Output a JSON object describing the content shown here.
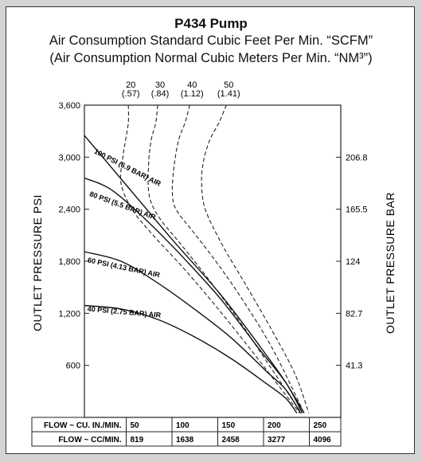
{
  "chart_data": {
    "type": "line",
    "title": "P434 Pump",
    "subtitle_1": "Air Consumption Standard Cubic Feet Per Min. “SCFM”",
    "subtitle_2": "(Air Consumption Normal Cubic Meters Per Min. “NM³”)",
    "ylabel_left": "OUTLET PRESSURE PSI",
    "ylabel_right": "OUTLET PRESSURE BAR",
    "ylim": [
      0,
      3600
    ],
    "xlim": [
      0,
      280
    ],
    "y_ticks_left": [
      "3,600",
      "3,000",
      "2,400",
      "1,800",
      "1,200",
      "600"
    ],
    "y_ticks_left_values": [
      3600,
      3000,
      2400,
      1800,
      1200,
      600
    ],
    "y_ticks_right": [
      "206.8",
      "165.5",
      "124",
      "82.7",
      "41.3"
    ],
    "y_ticks_right_values": [
      3000,
      2400,
      1800,
      1200,
      600
    ],
    "x_table": {
      "row1_label": "FLOW ~ CU. IN./MIN.",
      "row1_values": [
        "50",
        "100",
        "150",
        "200",
        "250"
      ],
      "row2_label": "FLOW ~ CC/MIN.",
      "row2_values": [
        "819",
        "1638",
        "2458",
        "3277",
        "4096"
      ]
    },
    "series": [
      {
        "name": "100 PSI (6.9 BAR) AIR",
        "points": [
          [
            0,
            3250
          ],
          [
            20,
            3000
          ],
          [
            60,
            2500
          ],
          [
            100,
            2000
          ],
          [
            150,
            1400
          ],
          [
            200,
            700
          ],
          [
            220,
            400
          ],
          [
            240,
            50
          ]
        ]
      },
      {
        "name": "80 PSI (5.5 BAR) AIR",
        "points": [
          [
            0,
            2760
          ],
          [
            30,
            2620
          ],
          [
            70,
            2250
          ],
          [
            110,
            1820
          ],
          [
            150,
            1350
          ],
          [
            190,
            800
          ],
          [
            220,
            400
          ],
          [
            238,
            50
          ]
        ]
      },
      {
        "name": "60 PSI (4.13 BAR) AIR",
        "points": [
          [
            0,
            1910
          ],
          [
            40,
            1800
          ],
          [
            80,
            1550
          ],
          [
            120,
            1250
          ],
          [
            160,
            920
          ],
          [
            200,
            520
          ],
          [
            220,
            320
          ],
          [
            236,
            50
          ]
        ]
      },
      {
        "name": "40 PSI (2.75 BAR) AIR",
        "points": [
          [
            0,
            1290
          ],
          [
            40,
            1250
          ],
          [
            80,
            1130
          ],
          [
            120,
            930
          ],
          [
            160,
            680
          ],
          [
            200,
            380
          ],
          [
            220,
            220
          ],
          [
            232,
            50
          ]
        ]
      }
    ],
    "air_consumption_lines": [
      {
        "scfm": "20",
        "nm3": "(.57)",
        "points": [
          [
            48,
            3600
          ],
          [
            48,
            3400
          ],
          [
            45,
            3200
          ],
          [
            42,
            3000
          ],
          [
            40,
            2700
          ],
          [
            52,
            2400
          ],
          [
            75,
            2100
          ],
          [
            110,
            1700
          ],
          [
            150,
            1200
          ],
          [
            195,
            600
          ],
          [
            235,
            50
          ]
        ]
      },
      {
        "scfm": "30",
        "nm3": "(.84)",
        "points": [
          [
            80,
            3600
          ],
          [
            78,
            3400
          ],
          [
            73,
            3200
          ],
          [
            70,
            2900
          ],
          [
            71,
            2550
          ],
          [
            82,
            2300
          ],
          [
            105,
            2000
          ],
          [
            135,
            1600
          ],
          [
            170,
            1100
          ],
          [
            205,
            550
          ],
          [
            237,
            50
          ]
        ]
      },
      {
        "scfm": "40",
        "nm3": "(1.12)",
        "points": [
          [
            115,
            3600
          ],
          [
            110,
            3400
          ],
          [
            103,
            3200
          ],
          [
            98,
            2900
          ],
          [
            96,
            2600
          ],
          [
            100,
            2400
          ],
          [
            118,
            2150
          ],
          [
            140,
            1850
          ],
          [
            170,
            1400
          ],
          [
            205,
            800
          ],
          [
            240,
            50
          ]
        ]
      },
      {
        "scfm": "50",
        "nm3": "(1.41)",
        "points": [
          [
            155,
            3600
          ],
          [
            147,
            3400
          ],
          [
            137,
            3200
          ],
          [
            130,
            2950
          ],
          [
            128,
            2700
          ],
          [
            132,
            2400
          ],
          [
            150,
            2000
          ],
          [
            175,
            1550
          ],
          [
            205,
            1000
          ],
          [
            230,
            500
          ],
          [
            245,
            50
          ]
        ]
      }
    ],
    "grid": false,
    "legend": "none"
  }
}
